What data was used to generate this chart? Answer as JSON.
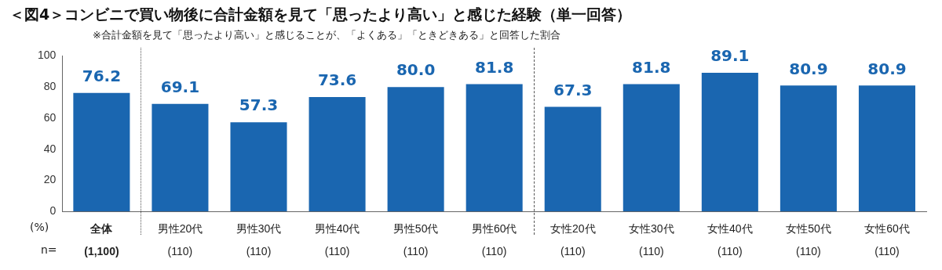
{
  "chart_data": {
    "type": "bar",
    "title": "＜図4＞コンビニで買い物後に合計金額を見て「思ったより高い」と感じた経験（単一回答）",
    "subtitle": "※合計金額を見て「思ったより高い」と感じることが、「よくある」「ときどきある」と回答した割合",
    "categories": [
      "全体\n(1,100)",
      "男性20代\n(110)",
      "男性30代\n(110)",
      "男性40代\n(110)",
      "男性50代\n(110)",
      "男性60代\n(110)",
      "女性20代\n(110)",
      "女性30代\n(110)",
      "女性40代\n(110)",
      "女性50代\n(110)",
      "女性60代\n(110)"
    ],
    "values": [
      76.2,
      69.1,
      57.3,
      73.6,
      80.0,
      81.8,
      67.3,
      81.8,
      89.1,
      80.9,
      80.9
    ],
    "color": "#1a66b0",
    "ylabel": "(%)",
    "annotations": [
      "n="
    ],
    "value_labels": [
      "76.2",
      "69.1",
      "57.3",
      "73.6",
      "80.0",
      "81.8",
      "67.3",
      "81.8",
      "89.1",
      "80.9",
      "80.9"
    ],
    "ylim": [
      0,
      100
    ],
    "yticks": [
      0,
      20,
      40,
      60,
      80,
      100
    ],
    "grid": false,
    "legend": false
  }
}
